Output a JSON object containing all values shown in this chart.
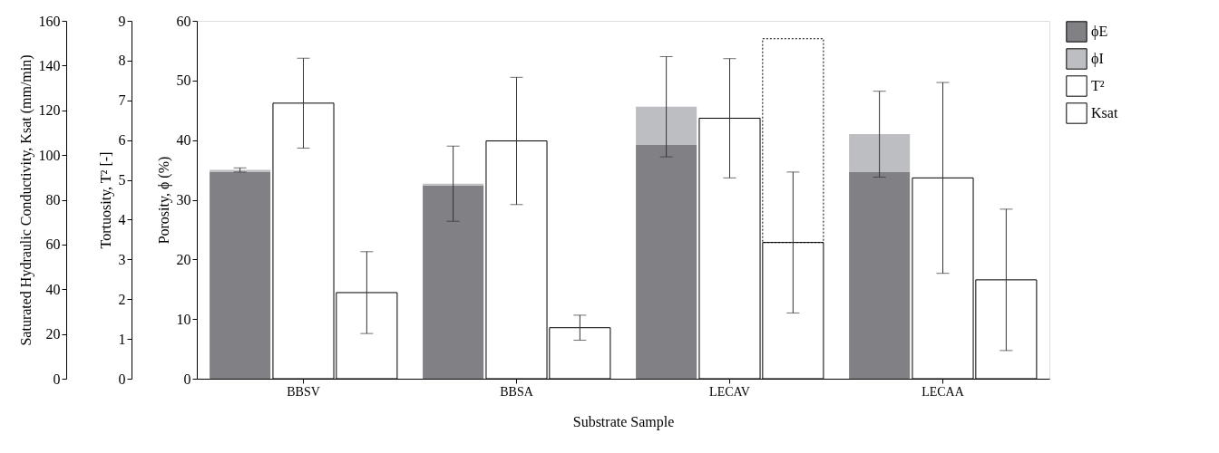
{
  "chart_data": {
    "type": "bar",
    "stacked": true,
    "xlabel": "Substrate Sample",
    "ylabel": "Porosity, ϕ (%)",
    "y3label": "Tortuosity, T² [-]",
    "y2label": "Saturated Hydraulic Conductivity, Ksat (mm/min)",
    "categories": [
      "BBSV",
      "BBSA",
      "LECAV",
      "LECAA"
    ],
    "ylim": [
      0,
      60
    ],
    "yticks": [
      0,
      10,
      20,
      30,
      40,
      50,
      60
    ],
    "y3lim": [
      0,
      9
    ],
    "y3ticks": [
      0,
      1,
      2,
      3,
      4,
      5,
      6,
      7,
      8,
      9
    ],
    "y2lim": [
      0,
      160
    ],
    "y2ticks": [
      0,
      20,
      40,
      60,
      80,
      100,
      120,
      140,
      160
    ],
    "series": [
      {
        "name": "ϕE",
        "color": "#808085",
        "axis": "y",
        "values": [
          34.7,
          32.4,
          39.2,
          34.7
        ]
      },
      {
        "name": "ϕI",
        "color": "#bdbec2",
        "axis": "y",
        "values": [
          0.3,
          0.3,
          6.4,
          6.3
        ],
        "errors": [
          0.35,
          6.3,
          8.4,
          7.2
        ]
      },
      {
        "name": "T²",
        "color": "#ffffff",
        "axis": "y3",
        "values": [
          6.93,
          5.98,
          6.55,
          5.05
        ],
        "errors": [
          1.13,
          1.6,
          1.5,
          2.4
        ]
      },
      {
        "name": "Ksat",
        "color": "#ffffff",
        "axis": "y2",
        "values": [
          38.5,
          22.8,
          60.9,
          44.2
        ],
        "errors": [
          18.3,
          5.6,
          31.5,
          31.6
        ]
      },
      {
        "color": "#000000",
        "axis": "y2",
        "line_style": "dotted",
        "values": [
          null,
          null,
          91.1,
          null
        ]
      }
    ],
    "grid": false,
    "legend": "right"
  }
}
